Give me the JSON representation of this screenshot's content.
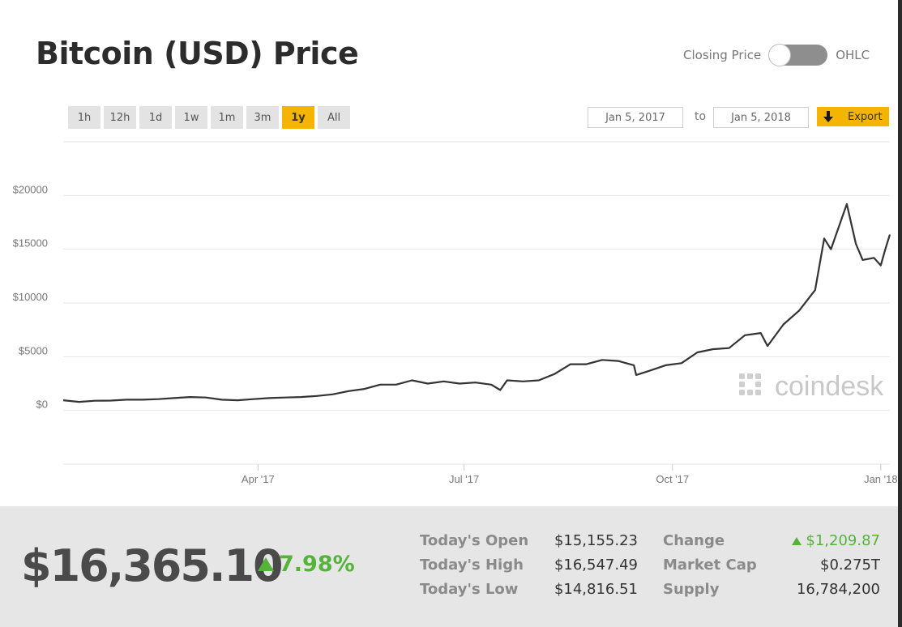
{
  "header": {
    "title": "Bitcoin (USD) Price",
    "toggle_left": "Closing Price",
    "toggle_right": "OHLC"
  },
  "ranges": [
    "1h",
    "12h",
    "1d",
    "1w",
    "1m",
    "3m",
    "1y",
    "All"
  ],
  "active_range": "1y",
  "date_from": "Jan 5, 2017",
  "date_to_label": "to",
  "date_to": "Jan 5, 2018",
  "export_label": "Export",
  "watermark": "coindesk",
  "colors": {
    "accent": "#f4b400",
    "line": "#333333",
    "positive": "#55b33a",
    "grid": "#e6e6e6"
  },
  "chart_data": {
    "type": "line",
    "title": "Bitcoin (USD) Price",
    "y_ticks": [
      "$20000",
      "$15000",
      "$10000",
      "$5000",
      "$0"
    ],
    "y_tick_values": [
      20000,
      15000,
      10000,
      5000,
      0
    ],
    "x_ticks": [
      "Apr '17",
      "Jul '17",
      "Oct '17",
      "Jan '18"
    ],
    "x_tick_dates": [
      "2017-04-01",
      "2017-07-01",
      "2017-10-01",
      "2018-01-01"
    ],
    "ylim": [
      -5000,
      25000
    ],
    "grid": true,
    "series": [
      {
        "x": [
          "2017-01-05",
          "2017-01-12",
          "2017-01-19",
          "2017-01-26",
          "2017-02-02",
          "2017-02-09",
          "2017-02-16",
          "2017-02-23",
          "2017-03-02",
          "2017-03-09",
          "2017-03-16",
          "2017-03-23",
          "2017-03-30",
          "2017-04-06",
          "2017-04-13",
          "2017-04-20",
          "2017-04-27",
          "2017-05-04",
          "2017-05-11",
          "2017-05-18",
          "2017-05-25",
          "2017-06-01",
          "2017-06-08",
          "2017-06-15",
          "2017-06-22",
          "2017-06-29",
          "2017-07-06",
          "2017-07-13",
          "2017-07-17",
          "2017-07-20",
          "2017-07-27",
          "2017-08-03",
          "2017-08-10",
          "2017-08-17",
          "2017-08-24",
          "2017-08-31",
          "2017-09-07",
          "2017-09-14",
          "2017-09-15",
          "2017-09-21",
          "2017-09-28",
          "2017-10-05",
          "2017-10-12",
          "2017-10-19",
          "2017-10-26",
          "2017-11-02",
          "2017-11-09",
          "2017-11-12",
          "2017-11-19",
          "2017-11-26",
          "2017-12-03",
          "2017-12-07",
          "2017-12-10",
          "2017-12-17",
          "2017-12-21",
          "2017-12-24",
          "2017-12-29",
          "2018-01-01",
          "2018-01-03",
          "2018-01-05"
        ],
        "values": [
          950,
          800,
          900,
          920,
          1000,
          1000,
          1050,
          1150,
          1250,
          1200,
          1000,
          950,
          1050,
          1150,
          1200,
          1250,
          1350,
          1500,
          1800,
          2000,
          2400,
          2400,
          2800,
          2500,
          2700,
          2500,
          2600,
          2400,
          1900,
          2800,
          2700,
          2800,
          3400,
          4300,
          4300,
          4700,
          4600,
          4200,
          3300,
          3700,
          4200,
          4400,
          5400,
          5700,
          5800,
          7000,
          7200,
          6000,
          8000,
          9300,
          11200,
          16000,
          15000,
          19200,
          15500,
          14000,
          14200,
          13500,
          15000,
          16365
        ]
      }
    ]
  },
  "stats": {
    "price": "$16,365.10",
    "change_pct": "7.98%",
    "open_label": "Today's Open",
    "open_value": "$15,155.23",
    "high_label": "Today's High",
    "high_value": "$16,547.49",
    "low_label": "Today's Low",
    "low_value": "$14,816.51",
    "change_label": "Change",
    "change_value": "$1,209.87",
    "mcap_label": "Market Cap",
    "mcap_value": "$0.275T",
    "supply_label": "Supply",
    "supply_value": "16,784,200"
  }
}
